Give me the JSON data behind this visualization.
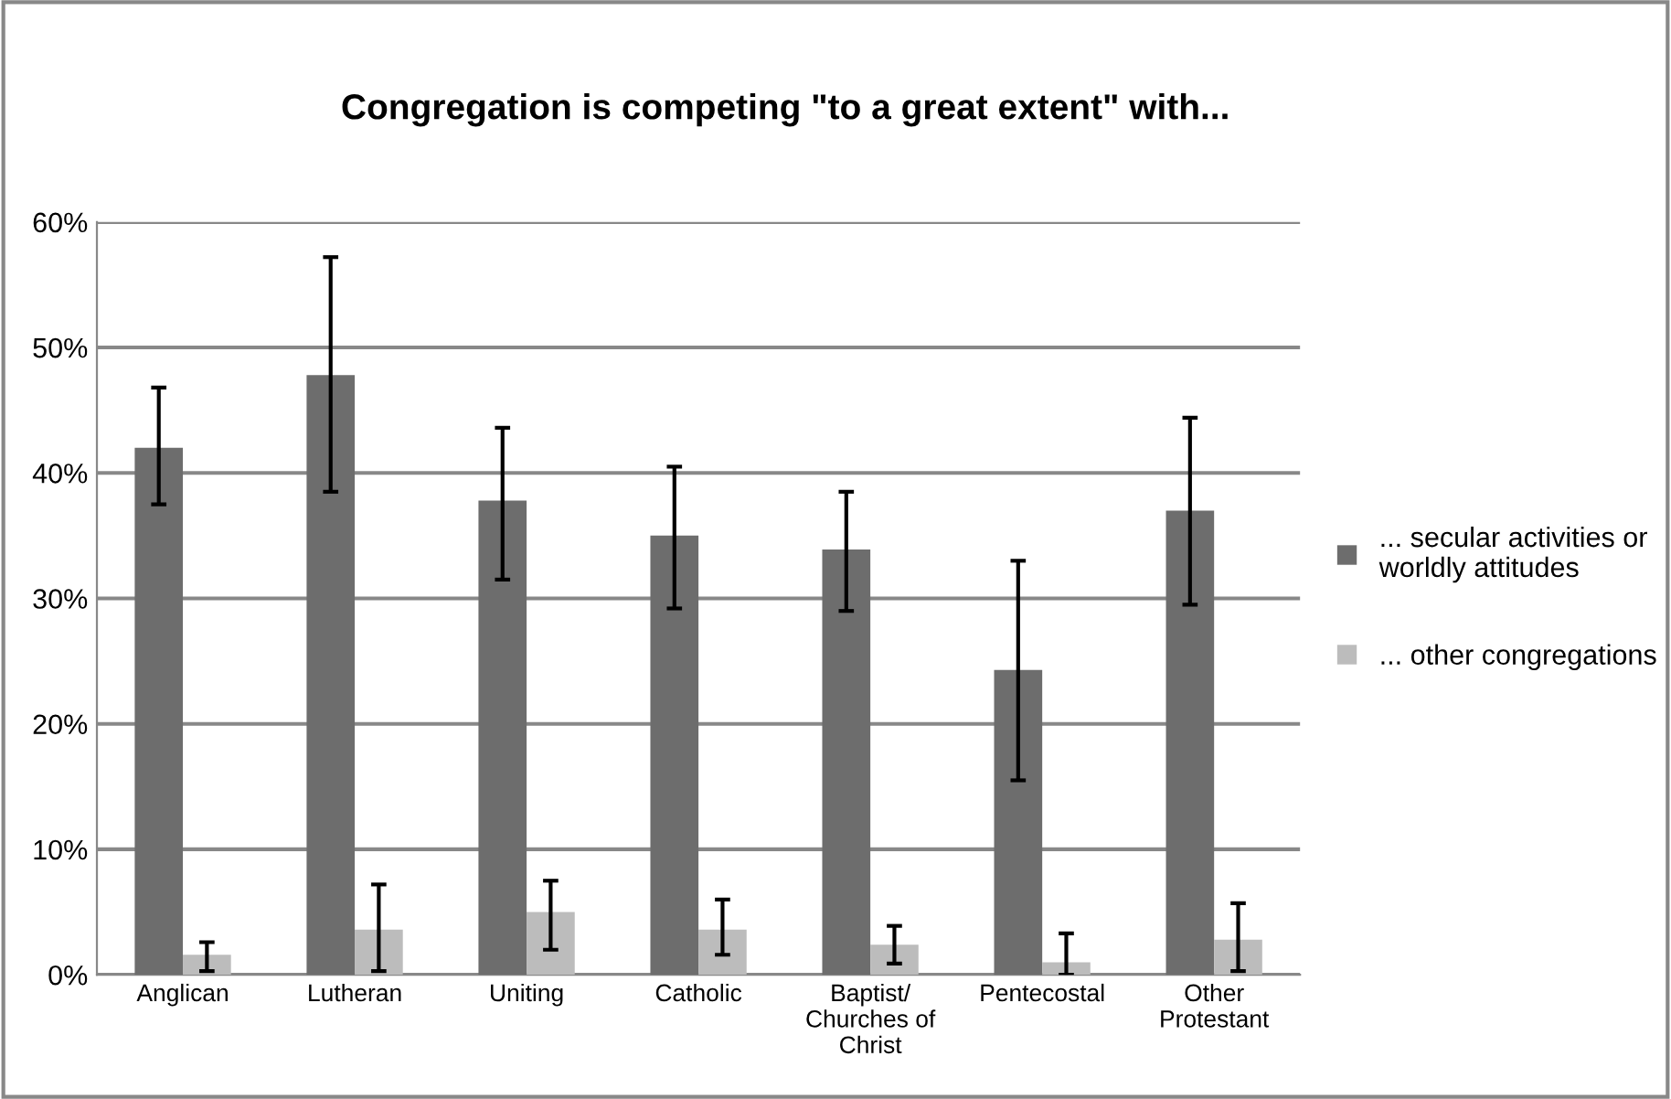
{
  "chart_data": {
    "type": "bar",
    "title": "Congregation is competing \"to a great extent\" with...",
    "categories": [
      "Anglican",
      "Lutheran",
      "Uniting",
      "Catholic",
      "Baptist/\nChurches of\nChrist",
      "Pentecostal",
      "Other\nProtestant"
    ],
    "series": [
      {
        "name": "... secular activities or\nworldly attitudes",
        "color": "#6d6d6d",
        "values": [
          42,
          47.8,
          37.8,
          35,
          33.9,
          24.3,
          37
        ],
        "errors": [
          [
            37.5,
            46.8
          ],
          [
            38.5,
            57.2
          ],
          [
            31.5,
            43.6
          ],
          [
            29.2,
            40.5
          ],
          [
            29,
            38.5
          ],
          [
            15.5,
            33
          ],
          [
            29.5,
            44.4
          ]
        ]
      },
      {
        "name": "... other congregations",
        "color": "#bcbcbc",
        "values": [
          1.6,
          3.6,
          5,
          3.6,
          2.4,
          1,
          2.8
        ],
        "errors": [
          [
            0.3,
            2.6
          ],
          [
            0.3,
            7.2
          ],
          [
            2,
            7.5
          ],
          [
            1.6,
            6
          ],
          [
            0.9,
            3.9
          ],
          [
            0,
            3.3
          ],
          [
            0.3,
            5.7
          ]
        ]
      }
    ],
    "ylim": [
      0,
      60
    ],
    "yticks": [
      {
        "value": 0,
        "label": "0%"
      },
      {
        "value": 10,
        "label": "10%"
      },
      {
        "value": 20,
        "label": "20%"
      },
      {
        "value": 30,
        "label": "30%"
      },
      {
        "value": 40,
        "label": "40%"
      },
      {
        "value": 50,
        "label": "50%"
      },
      {
        "value": 60,
        "label": "60%"
      }
    ],
    "grid": "y",
    "legend": "right"
  }
}
